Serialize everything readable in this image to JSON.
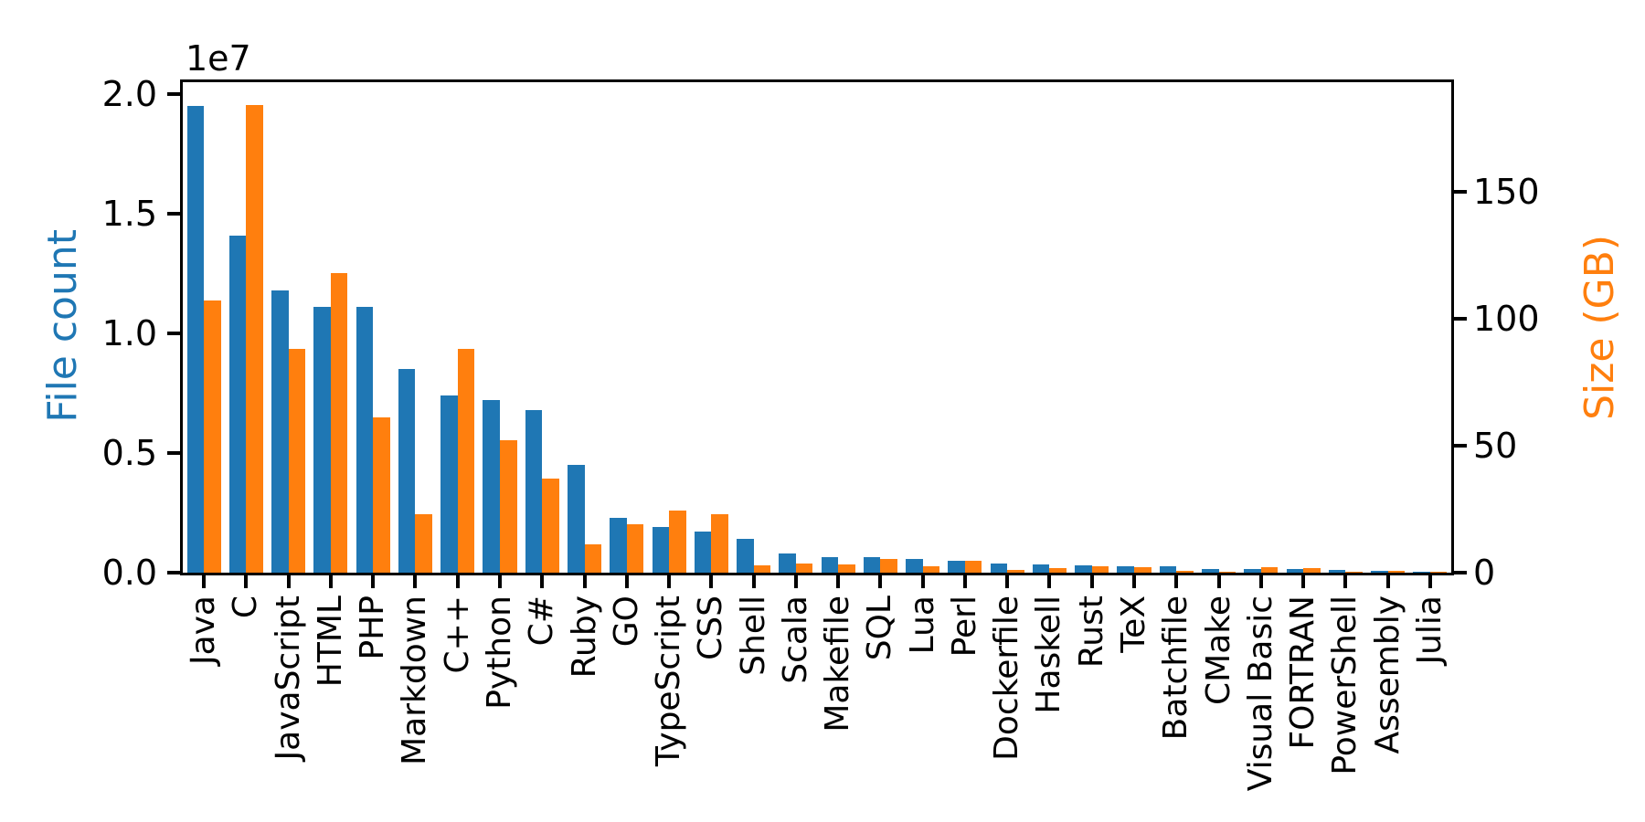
{
  "colors": {
    "file_count": "#1f77b4",
    "size": "#ff7f0e",
    "axis": "#000000",
    "background": "#ffffff"
  },
  "chart_data": {
    "type": "bar",
    "title": "",
    "ylabel_left": "File count",
    "ylabel_right": "Size (GB)",
    "offset_label": "1e7",
    "left_axis": {
      "unit": "files (×1e7)",
      "ticks": [
        0.0,
        0.5,
        1.0,
        1.5,
        2.0
      ],
      "tick_labels": [
        "0.0",
        "0.5",
        "1.0",
        "1.5",
        "2.0"
      ],
      "ylim": [
        0,
        2.05
      ]
    },
    "right_axis": {
      "unit": "GB",
      "ticks": [
        0,
        50,
        100,
        150
      ],
      "tick_labels": [
        "0",
        "50",
        "100",
        "150"
      ],
      "ylim": [
        0,
        193
      ]
    },
    "categories": [
      "Java",
      "C",
      "JavaScript",
      "HTML",
      "PHP",
      "Markdown",
      "C++",
      "Python",
      "C#",
      "Ruby",
      "GO",
      "TypeScript",
      "CSS",
      "Shell",
      "Scala",
      "Makefile",
      "SQL",
      "Lua",
      "Perl",
      "Dockerfile",
      "Haskell",
      "Rust",
      "TeX",
      "Batchfile",
      "CMake",
      "Visual Basic",
      "FORTRAN",
      "PowerShell",
      "Assembly",
      "Julia"
    ],
    "series": [
      {
        "name": "File count",
        "axis": "left",
        "unit": "1e7 files",
        "color": "#1f77b4",
        "values": [
          1.95,
          1.41,
          1.18,
          1.11,
          1.11,
          0.85,
          0.74,
          0.72,
          0.68,
          0.45,
          0.23,
          0.19,
          0.17,
          0.14,
          0.081,
          0.066,
          0.064,
          0.058,
          0.048,
          0.037,
          0.033,
          0.031,
          0.027,
          0.025,
          0.017,
          0.015,
          0.014,
          0.013,
          0.009,
          0.005
        ]
      },
      {
        "name": "Size (GB)",
        "axis": "right",
        "unit": "GB",
        "color": "#ff7f0e",
        "values": [
          107,
          184,
          88,
          118,
          61,
          23,
          88,
          52,
          37,
          11,
          19,
          24.5,
          23,
          2.9,
          3.7,
          3.1,
          5.5,
          2.5,
          4.6,
          1.1,
          1.9,
          2.4,
          2.0,
          0.7,
          0.4,
          2.0,
          1.7,
          0.4,
          0.7,
          0.3
        ]
      }
    ],
    "legend": null,
    "grid": false
  }
}
